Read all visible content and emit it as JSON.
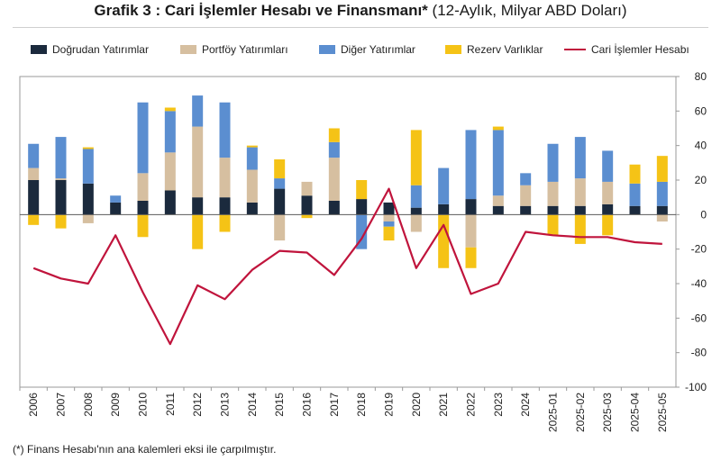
{
  "title": {
    "bold": "Grafik 3 : Cari İşlemler Hesabı ve Finansmanı*",
    "light": "(12-Aylık, Milyar ABD Doları)"
  },
  "footnote": "(*) Finans Hesabı'nın ana kalemleri eksi ile çarpılmıştır.",
  "colors": {
    "direct": "#1b2a3d",
    "portfolio": "#d6bfa0",
    "other": "#5b8ed0",
    "reserve": "#f5c316",
    "current": "#c0143c"
  },
  "chart_data": {
    "type": "bar",
    "stacked": true,
    "categories": [
      "2006",
      "2007",
      "2008",
      "2009",
      "2010",
      "2011",
      "2012",
      "2013",
      "2014",
      "2015",
      "2016",
      "2017",
      "2018",
      "2019",
      "2020",
      "2021",
      "2022",
      "2023",
      "2024",
      "2025-01",
      "2025-02",
      "2025-03",
      "2025-04",
      "2025-05"
    ],
    "ylim": [
      -100,
      80
    ],
    "yticks": [
      -100,
      -80,
      -60,
      -40,
      -20,
      0,
      20,
      40,
      60,
      80
    ],
    "grid": false,
    "legend_position": "top",
    "series": [
      {
        "name": "Doğrudan Yatırımlar",
        "key": "direct",
        "type": "bar",
        "values": [
          20,
          20,
          18,
          7,
          8,
          14,
          10,
          10,
          7,
          15,
          11,
          8,
          9,
          7,
          4,
          6,
          9,
          5,
          5,
          5,
          5,
          6,
          5,
          5
        ]
      },
      {
        "name": "Portföy Yatırımları",
        "key": "portfolio",
        "type": "bar",
        "values": [
          7,
          1,
          -5,
          0,
          16,
          22,
          41,
          23,
          19,
          -15,
          8,
          25,
          0,
          -4,
          -10,
          0,
          -19,
          6,
          12,
          14,
          16,
          13,
          0,
          -4
        ]
      },
      {
        "name": "Diğer Yatırımlar",
        "key": "other",
        "type": "bar",
        "values": [
          14,
          24,
          20,
          4,
          41,
          24,
          18,
          32,
          13,
          6,
          0,
          9,
          -20,
          -3,
          13,
          21,
          40,
          38,
          7,
          22,
          24,
          18,
          13,
          14
        ]
      },
      {
        "name": "Rezerv Varlıklar",
        "key": "reserve",
        "type": "bar",
        "values": [
          -6,
          -8,
          1,
          0,
          -13,
          2,
          -20,
          -10,
          1,
          11,
          -2,
          8,
          11,
          -8,
          32,
          -31,
          -12,
          2,
          0,
          -12,
          -17,
          -12,
          11,
          15
        ]
      },
      {
        "name": "Cari İşlemler Hesabı",
        "key": "current",
        "type": "line",
        "values": [
          -31,
          -37,
          -40,
          -12,
          -45,
          -75,
          -41,
          -49,
          -32,
          -21,
          -22,
          -35,
          -14,
          15,
          -31,
          -6,
          -46,
          -40,
          -10,
          -12,
          -13,
          -13,
          -16,
          -17
        ]
      }
    ]
  }
}
